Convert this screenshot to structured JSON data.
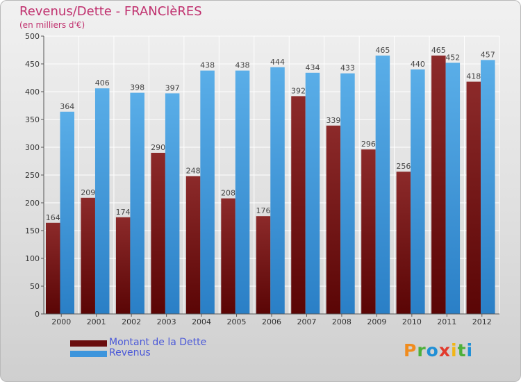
{
  "title": "Revenus/Dette - FRANClèRES",
  "subtitle": "(en milliers d'€)",
  "colors": {
    "title": "#c0306e",
    "debt": "#7a1c1c",
    "revenue": "#3d95dc",
    "legend_text": "#4a58d8"
  },
  "logo": {
    "letters": [
      {
        "ch": "P",
        "color": "#f08c1e"
      },
      {
        "ch": "r",
        "color": "#4db03a"
      },
      {
        "ch": "o",
        "color": "#1f8fd6"
      },
      {
        "ch": "x",
        "color": "#e23a2c"
      },
      {
        "ch": "i",
        "color": "#f2b516"
      },
      {
        "ch": "t",
        "color": "#4db03a"
      },
      {
        "ch": "i",
        "color": "#1f8fd6"
      }
    ]
  },
  "chart_data": {
    "type": "bar",
    "title": "Revenus/Dette - FRANClèRES",
    "subtitle": "(en milliers d'€)",
    "categories": [
      "2000",
      "2001",
      "2002",
      "2003",
      "2004",
      "2005",
      "2006",
      "2007",
      "2008",
      "2009",
      "2010",
      "2011",
      "2012"
    ],
    "series": [
      {
        "name": "Montant de la Dette",
        "values": [
          164,
          209,
          174,
          290,
          248,
          208,
          176,
          392,
          339,
          296,
          256,
          465,
          418
        ]
      },
      {
        "name": "Revenus",
        "values": [
          364,
          406,
          398,
          397,
          438,
          438,
          444,
          434,
          433,
          465,
          440,
          452,
          457
        ]
      }
    ],
    "ylim": [
      0,
      500
    ],
    "yticks": [
      0,
      50,
      100,
      150,
      200,
      250,
      300,
      350,
      400,
      450,
      500
    ],
    "grid": true,
    "legend": "bottom-left"
  }
}
